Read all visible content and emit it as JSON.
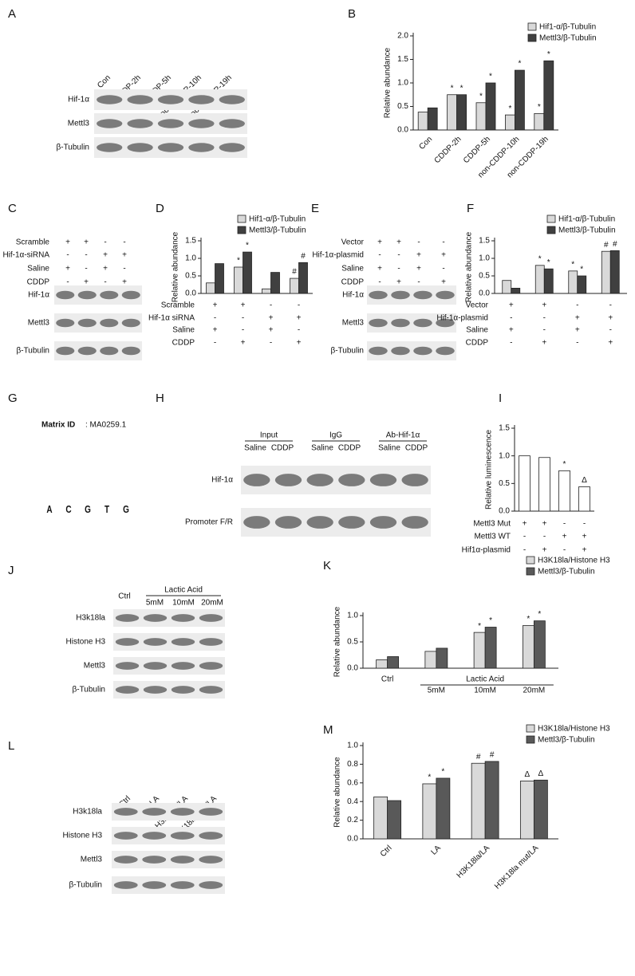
{
  "blots": {
    "A": {
      "label": "A",
      "lanes": [
        "Con",
        "CDDP-2h",
        "CDDP-5h",
        "non-CDDP-10h",
        "non-CDDP-19h"
      ],
      "rows": [
        "Hif-1α",
        "Mettl3",
        "β-Tubulin"
      ]
    },
    "C": {
      "label": "C",
      "conditions": [
        {
          "label": "Scramble",
          "signs": [
            "+",
            "+",
            "-",
            "-"
          ]
        },
        {
          "label": "Hif-1α-siRNA",
          "signs": [
            "-",
            "-",
            "+",
            "+"
          ]
        },
        {
          "label": "Saline",
          "signs": [
            "+",
            "-",
            "+",
            "-"
          ]
        },
        {
          "label": "CDDP",
          "signs": [
            "-",
            "+",
            "-",
            "+"
          ]
        }
      ],
      "rows": [
        "Hif-1α",
        "Mettl3",
        "β-Tubulin"
      ]
    },
    "E": {
      "label": "E",
      "conditions": [
        {
          "label": "Vector",
          "signs": [
            "+",
            "+",
            "-",
            "-"
          ]
        },
        {
          "label": "Hif-1α-plasmid",
          "signs": [
            "-",
            "-",
            "+",
            "+"
          ]
        },
        {
          "label": "Saline",
          "signs": [
            "+",
            "-",
            "+",
            "-"
          ]
        },
        {
          "label": "CDDP",
          "signs": [
            "-",
            "+",
            "-",
            "+"
          ]
        }
      ],
      "rows": [
        "Hif-1α",
        "Mettl3",
        "β-Tubulin"
      ]
    },
    "G": {
      "label": "G",
      "matrix_label": "Matrix ID",
      "matrix_id": ": MA0259.1",
      "motif": [
        "A",
        "C",
        "G",
        "T",
        "G"
      ]
    },
    "H": {
      "label": "H",
      "groups": [
        {
          "name": "Input",
          "lanes": [
            "Saline",
            "CDDP"
          ]
        },
        {
          "name": "IgG",
          "lanes": [
            "Saline",
            "CDDP"
          ]
        },
        {
          "name": "Ab-Hif-1α",
          "lanes": [
            "Saline",
            "CDDP"
          ]
        }
      ],
      "rows": [
        "Hif-1α",
        "Promoter F/R"
      ]
    },
    "J": {
      "label": "J",
      "control": "Ctrl",
      "treatment": "Lactic Acid",
      "doses": [
        "5mM",
        "10mM",
        "20mM"
      ],
      "rows": [
        "H3k18la",
        "Histone H3",
        "Mettl3",
        "β-Tubulin"
      ]
    },
    "L": {
      "label": "L",
      "lanes": [
        "Ctrl",
        "LA",
        "H3K18la/LA",
        "H3K18la mut/LA"
      ],
      "rows": [
        "H3k18la",
        "Histone H3",
        "Mettl3",
        "β-Tubulin"
      ]
    }
  },
  "chart_data": [
    {
      "type": "bar",
      "panel_label": "B",
      "ylabel": "Relative abundance",
      "categories": [
        "Con",
        "CDDP-2h",
        "CDDP-5h",
        "non-CDDP-10h",
        "non-CDDP-19h"
      ],
      "series": [
        {
          "name": "Hif1-α/β-Tubulin",
          "color": "#d9d9d9",
          "values": [
            0.38,
            0.75,
            0.58,
            0.32,
            0.35
          ],
          "markers": [
            null,
            "*",
            "*",
            "*",
            "*"
          ]
        },
        {
          "name": "Mettl3/β-Tubulin",
          "color": "#404040",
          "values": [
            0.47,
            0.75,
            1.0,
            1.27,
            1.47
          ],
          "markers": [
            null,
            "*",
            "*",
            "*",
            "*"
          ]
        }
      ],
      "ylim": [
        0,
        2.0
      ],
      "yticks": [
        {
          "value": 0,
          "label": "0.0"
        },
        {
          "value": 0.5,
          "label": "0.5"
        },
        {
          "value": 1,
          "label": "1.0"
        },
        {
          "value": 1.5,
          "label": "1.5"
        },
        {
          "value": 2,
          "label": "2.0"
        }
      ]
    },
    {
      "type": "bar",
      "panel_label": "D",
      "ylabel": "Relative abundance",
      "categories": [
        null,
        null,
        null,
        null
      ],
      "conditions": [
        {
          "label": "Scramble",
          "signs": [
            "+",
            "+",
            "-",
            "-"
          ]
        },
        {
          "label": "Hif-1α siRNA",
          "signs": [
            "-",
            "-",
            "+",
            "+"
          ]
        },
        {
          "label": "Saline",
          "signs": [
            "+",
            "-",
            "+",
            "-"
          ]
        },
        {
          "label": "CDDP",
          "signs": [
            "-",
            "+",
            "-",
            "+"
          ]
        }
      ],
      "series": [
        {
          "name": "Hif1-α/β-Tubulin",
          "color": "#d9d9d9",
          "values": [
            0.3,
            0.75,
            0.13,
            0.43
          ],
          "markers": [
            null,
            "*",
            null,
            "#"
          ]
        },
        {
          "name": "Mettl3/β-Tubulin",
          "color": "#404040",
          "values": [
            0.85,
            1.18,
            0.6,
            0.88
          ],
          "markers": [
            null,
            "*",
            null,
            "#"
          ]
        }
      ],
      "ylim": [
        0,
        1.5
      ],
      "yticks": [
        {
          "value": 0,
          "label": "0.0"
        },
        {
          "value": 0.5,
          "label": "0.5"
        },
        {
          "value": 1,
          "label": "1.0"
        },
        {
          "value": 1.5,
          "label": "1.5"
        }
      ]
    },
    {
      "type": "bar",
      "panel_label": "F",
      "ylabel": "Relative abundance",
      "categories": [
        null,
        null,
        null,
        null
      ],
      "conditions": [
        {
          "label": "Vector",
          "signs": [
            "+",
            "+",
            "-",
            "-"
          ]
        },
        {
          "label": "Hif-1α-plasmid",
          "signs": [
            "-",
            "-",
            "+",
            "+"
          ]
        },
        {
          "label": "Saline",
          "signs": [
            "+",
            "-",
            "+",
            "-"
          ]
        },
        {
          "label": "CDDP",
          "signs": [
            "-",
            "+",
            "-",
            "+"
          ]
        }
      ],
      "series": [
        {
          "name": "Hif1-α/β-Tubulin",
          "color": "#d9d9d9",
          "values": [
            0.37,
            0.8,
            0.64,
            1.2
          ],
          "markers": [
            null,
            "*",
            "*",
            "#"
          ]
        },
        {
          "name": "Mettl3/β-Tubulin",
          "color": "#404040",
          "values": [
            0.15,
            0.7,
            0.5,
            1.22
          ],
          "markers": [
            null,
            "*",
            "*",
            "#"
          ]
        }
      ],
      "ylim": [
        0,
        1.5
      ],
      "yticks": [
        {
          "value": 0,
          "label": "0.0"
        },
        {
          "value": 0.5,
          "label": "0.5"
        },
        {
          "value": 1,
          "label": "1.0"
        },
        {
          "value": 1.5,
          "label": "1.5"
        }
      ]
    },
    {
      "type": "bar",
      "panel_label": "I",
      "ylabel": "Relative luminescence",
      "categories": [
        null,
        null,
        null,
        null
      ],
      "conditions": [
        {
          "label": "Mettl3 Mut",
          "signs": [
            "+",
            "+",
            "-",
            "-"
          ]
        },
        {
          "label": "Mettl3 WT",
          "signs": [
            "-",
            "-",
            "+",
            "+"
          ]
        },
        {
          "label": "Hif1α-plasmid",
          "signs": [
            "-",
            "+",
            "-",
            "+"
          ]
        }
      ],
      "values": [
        1.0,
        0.97,
        0.73,
        0.44
      ],
      "markers": [
        null,
        null,
        "*",
        "Δ"
      ],
      "color": "#ffffff",
      "ylim": [
        0,
        1.5
      ],
      "yticks": [
        {
          "value": 0,
          "label": "0.0"
        },
        {
          "value": 0.5,
          "label": "0.5"
        },
        {
          "value": 1,
          "label": "1.0"
        },
        {
          "value": 1.5,
          "label": "1.5"
        }
      ]
    },
    {
      "type": "bar",
      "panel_label": "K",
      "ylabel": "Relative abundance",
      "categories": [
        "Ctrl",
        "5mM",
        "10mM",
        "20mM"
      ],
      "group_label": "Lactic Acid",
      "series": [
        {
          "name": "H3K18la/Histone H3",
          "color": "#d9d9d9",
          "values": [
            0.16,
            0.32,
            0.68,
            0.81
          ],
          "markers": [
            null,
            null,
            "*",
            "*"
          ]
        },
        {
          "name": "Mettl3/β-Tubulin",
          "color": "#595959",
          "values": [
            0.22,
            0.38,
            0.78,
            0.9
          ],
          "markers": [
            null,
            null,
            "*",
            "*"
          ]
        }
      ],
      "ylim": [
        0,
        1.0
      ],
      "yticks": [
        {
          "value": 0,
          "label": "0.0"
        },
        {
          "value": 0.5,
          "label": "0.5"
        },
        {
          "value": 1,
          "label": "1.0"
        }
      ]
    },
    {
      "type": "bar",
      "panel_label": "M",
      "ylabel": "Relative abundance",
      "categories": [
        "Ctrl",
        "LA",
        "H3K18la/LA",
        "H3K18la mut/LA"
      ],
      "series": [
        {
          "name": "H3K18la/Histone H3",
          "color": "#d9d9d9",
          "values": [
            0.45,
            0.59,
            0.81,
            0.62
          ],
          "markers": [
            null,
            "*",
            "#",
            "Δ"
          ]
        },
        {
          "name": "Mettl3/β-Tubulin",
          "color": "#595959",
          "values": [
            0.41,
            0.65,
            0.83,
            0.63
          ],
          "markers": [
            null,
            "*",
            "#",
            "Δ"
          ]
        }
      ],
      "ylim": [
        0,
        1.0
      ],
      "yticks": [
        {
          "value": 0,
          "label": "0.0"
        },
        {
          "value": 0.2,
          "label": "0.2"
        },
        {
          "value": 0.4,
          "label": "0.4"
        },
        {
          "value": 0.6,
          "label": "0.6"
        },
        {
          "value": 0.8,
          "label": "0.8"
        },
        {
          "value": 1,
          "label": "1.0"
        }
      ]
    }
  ]
}
